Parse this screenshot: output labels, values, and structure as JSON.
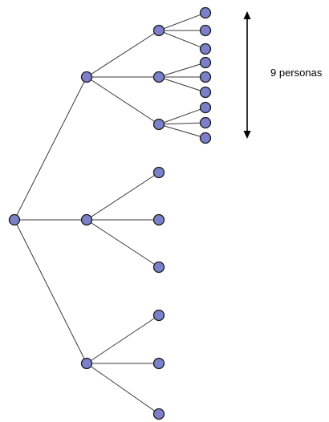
{
  "diagram": {
    "annotation_label": "9 personas",
    "node_color": "#7b80c9",
    "edge_color": "#3a3a3a",
    "tree": {
      "children": [
        {
          "children": [
            {
              "children": [
                {},
                {},
                {}
              ]
            },
            {
              "children": [
                {},
                {},
                {}
              ]
            },
            {
              "children": [
                {},
                {},
                {}
              ]
            }
          ]
        },
        {
          "children": [
            {},
            {},
            {}
          ]
        },
        {
          "children": [
            {},
            {},
            {}
          ]
        }
      ]
    }
  }
}
